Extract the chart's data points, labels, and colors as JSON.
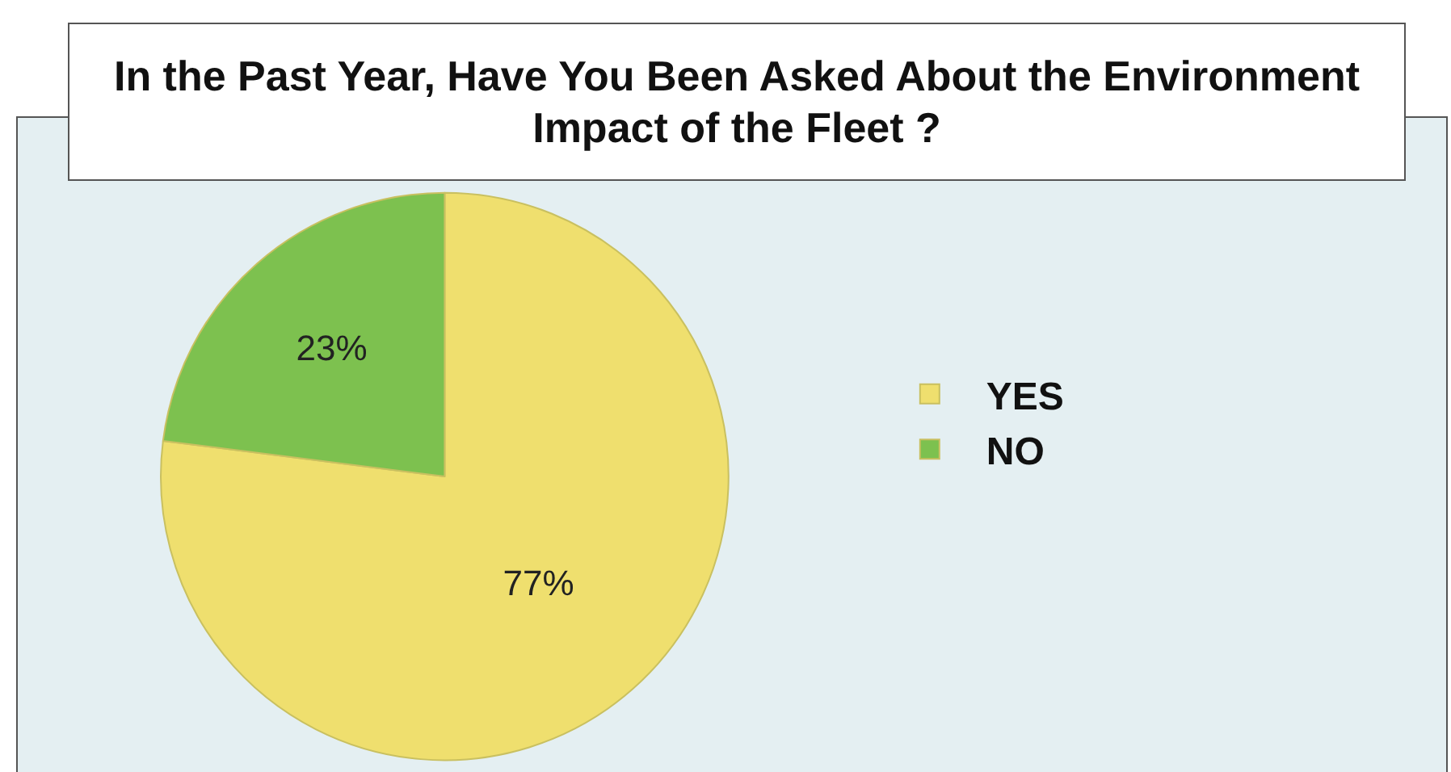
{
  "chart_data": {
    "type": "pie",
    "title": "In the Past Year, Have You Been Asked About the Environment Impact of the Fleet ?",
    "categories": [
      "YES",
      "NO"
    ],
    "values": [
      77,
      23
    ],
    "colors": [
      "#efdf6e",
      "#7dc14f"
    ],
    "value_labels": [
      "77%",
      "23%"
    ],
    "legend": "right"
  }
}
